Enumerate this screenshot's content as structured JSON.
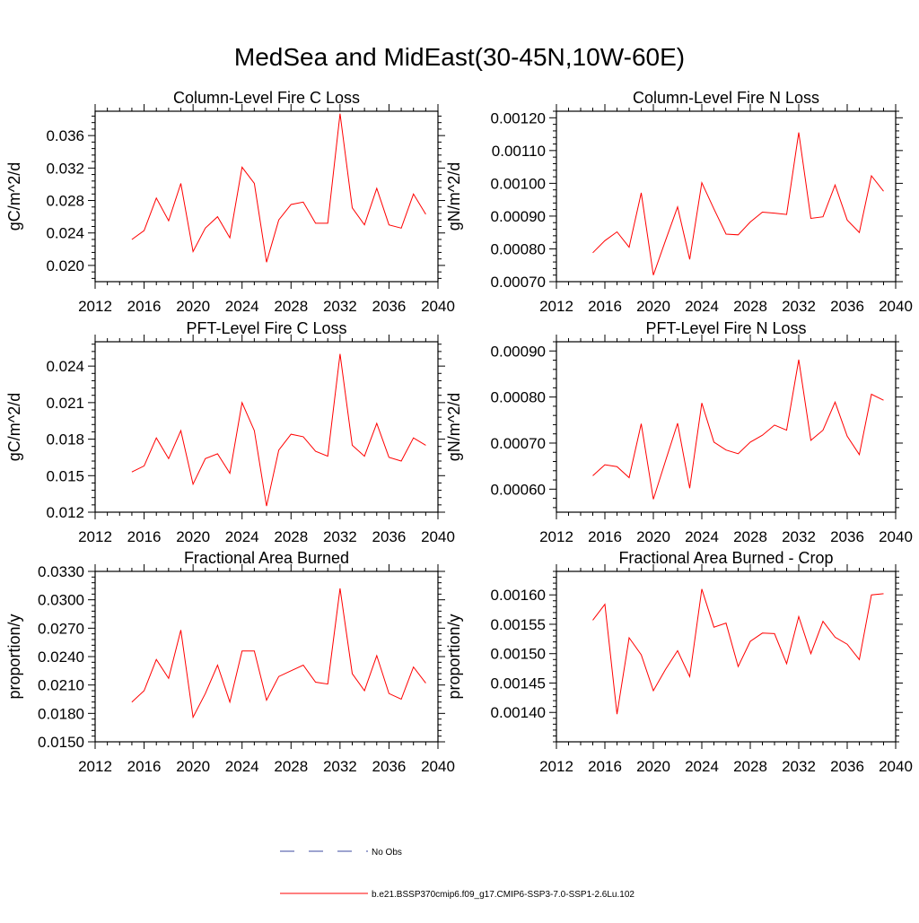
{
  "title": "MedSea and MidEast(30-45N,10W-60E)",
  "colors": {
    "series": "#ff0000",
    "obs": "#3b4aa0",
    "axis": "#000000"
  },
  "legend": {
    "obs_label": "No Obs",
    "model_label": "b.e21.BSSP370cmip6.f09_g17.CMIP6-SSP3-7.0-SSP1-2.6Lu.102"
  },
  "chart_data": [
    {
      "type": "line",
      "title": "Column-Level Fire C Loss",
      "ylabel": "gC/m^2/d",
      "xlim": [
        2012,
        2040
      ],
      "ylim": [
        0.018,
        0.039
      ],
      "xticks": [
        "2012",
        "2016",
        "2020",
        "2024",
        "2028",
        "2032",
        "2036",
        "2040"
      ],
      "yticks": [
        "0.020",
        "0.024",
        "0.028",
        "0.032",
        "0.036"
      ],
      "x": [
        2015,
        2016,
        2017,
        2018,
        2019,
        2020,
        2021,
        2022,
        2023,
        2024,
        2025,
        2026,
        2027,
        2028,
        2029,
        2030,
        2031,
        2032,
        2033,
        2034,
        2035,
        2036,
        2037,
        2038,
        2039
      ],
      "values": [
        0.0232,
        0.0243,
        0.0283,
        0.0255,
        0.0301,
        0.0217,
        0.0246,
        0.026,
        0.0234,
        0.0321,
        0.0301,
        0.0204,
        0.0256,
        0.0275,
        0.0278,
        0.0252,
        0.0252,
        0.0387,
        0.0271,
        0.025,
        0.0295,
        0.025,
        0.0246,
        0.0288,
        0.0263
      ]
    },
    {
      "type": "line",
      "title": "Column-Level Fire N Loss",
      "ylabel": "gN/m^2/d",
      "xlim": [
        2012,
        2040
      ],
      "ylim": [
        0.0007,
        0.00122
      ],
      "xticks": [
        "2012",
        "2016",
        "2020",
        "2024",
        "2028",
        "2032",
        "2036",
        "2040"
      ],
      "yticks": [
        "0.00070",
        "0.00080",
        "0.00090",
        "0.00100",
        "0.00110",
        "0.00120"
      ],
      "x": [
        2015,
        2016,
        2017,
        2018,
        2019,
        2020,
        2021,
        2022,
        2023,
        2024,
        2025,
        2026,
        2027,
        2028,
        2029,
        2030,
        2031,
        2032,
        2033,
        2034,
        2035,
        2036,
        2037,
        2038,
        2039
      ],
      "values": [
        0.000788,
        0.000825,
        0.000852,
        0.000805,
        0.000971,
        0.00072,
        0.000825,
        0.000928,
        0.000768,
        0.001002,
        0.000922,
        0.000845,
        0.000843,
        0.000882,
        0.000912,
        0.000909,
        0.000905,
        0.001155,
        0.000893,
        0.000898,
        0.000995,
        0.000888,
        0.00085,
        0.001023,
        0.000976
      ]
    },
    {
      "type": "line",
      "title": "PFT-Level Fire C Loss",
      "ylabel": "gC/m^2/d",
      "xlim": [
        2012,
        2040
      ],
      "ylim": [
        0.012,
        0.026
      ],
      "xticks": [
        "2012",
        "2016",
        "2020",
        "2024",
        "2028",
        "2032",
        "2036",
        "2040"
      ],
      "yticks": [
        "0.012",
        "0.015",
        "0.018",
        "0.021",
        "0.024"
      ],
      "x": [
        2015,
        2016,
        2017,
        2018,
        2019,
        2020,
        2021,
        2022,
        2023,
        2024,
        2025,
        2026,
        2027,
        2028,
        2029,
        2030,
        2031,
        2032,
        2033,
        2034,
        2035,
        2036,
        2037,
        2038,
        2039
      ],
      "values": [
        0.0153,
        0.0158,
        0.0181,
        0.0164,
        0.0187,
        0.0143,
        0.0164,
        0.0168,
        0.0152,
        0.021,
        0.0187,
        0.0125,
        0.0171,
        0.0184,
        0.0182,
        0.017,
        0.0166,
        0.025,
        0.0175,
        0.0166,
        0.0193,
        0.0165,
        0.0162,
        0.0181,
        0.0175
      ]
    },
    {
      "type": "line",
      "title": "PFT-Level Fire N Loss",
      "ylabel": "gN/m^2/d",
      "xlim": [
        2012,
        2040
      ],
      "ylim": [
        0.00055,
        0.00092
      ],
      "xticks": [
        "2012",
        "2016",
        "2020",
        "2024",
        "2028",
        "2032",
        "2036",
        "2040"
      ],
      "yticks": [
        "0.00060",
        "0.00070",
        "0.00080",
        "0.00090"
      ],
      "x": [
        2015,
        2016,
        2017,
        2018,
        2019,
        2020,
        2021,
        2022,
        2023,
        2024,
        2025,
        2026,
        2027,
        2028,
        2029,
        2030,
        2031,
        2032,
        2033,
        2034,
        2035,
        2036,
        2037,
        2038,
        2039
      ],
      "values": [
        0.000629,
        0.000653,
        0.000649,
        0.000625,
        0.000742,
        0.000578,
        0.000661,
        0.000743,
        0.000602,
        0.000787,
        0.000702,
        0.000685,
        0.000677,
        0.000702,
        0.000717,
        0.000739,
        0.000728,
        0.000881,
        0.000706,
        0.000728,
        0.000789,
        0.000715,
        0.000675,
        0.000806,
        0.000793
      ]
    },
    {
      "type": "line",
      "title": "Fractional Area Burned",
      "ylabel": "proportion/y",
      "xlim": [
        2012,
        2040
      ],
      "ylim": [
        0.015,
        0.033
      ],
      "xticks": [
        "2012",
        "2016",
        "2020",
        "2024",
        "2028",
        "2032",
        "2036",
        "2040"
      ],
      "yticks": [
        "0.0150",
        "0.0180",
        "0.0210",
        "0.0240",
        "0.0270",
        "0.0300",
        "0.0330"
      ],
      "x": [
        2015,
        2016,
        2017,
        2018,
        2019,
        2020,
        2021,
        2022,
        2023,
        2024,
        2025,
        2026,
        2027,
        2028,
        2029,
        2030,
        2031,
        2032,
        2033,
        2034,
        2035,
        2036,
        2037,
        2038,
        2039
      ],
      "values": [
        0.0192,
        0.0204,
        0.0237,
        0.0217,
        0.0268,
        0.0176,
        0.0201,
        0.0231,
        0.0192,
        0.0246,
        0.0246,
        0.0194,
        0.0219,
        0.0225,
        0.0231,
        0.0213,
        0.0211,
        0.0312,
        0.0222,
        0.0204,
        0.0241,
        0.0201,
        0.0195,
        0.0229,
        0.0212
      ]
    },
    {
      "type": "line",
      "title": "Fractional Area Burned - Crop",
      "ylabel": "proportion/y",
      "xlim": [
        2012,
        2040
      ],
      "ylim": [
        0.00135,
        0.00164
      ],
      "xticks": [
        "2012",
        "2016",
        "2020",
        "2024",
        "2028",
        "2032",
        "2036",
        "2040"
      ],
      "yticks": [
        "0.00140",
        "0.00145",
        "0.00150",
        "0.00155",
        "0.00160"
      ],
      "x": [
        2015,
        2016,
        2017,
        2018,
        2019,
        2020,
        2021,
        2022,
        2023,
        2024,
        2025,
        2026,
        2027,
        2028,
        2029,
        2030,
        2031,
        2032,
        2033,
        2034,
        2035,
        2036,
        2037,
        2038,
        2039
      ],
      "values": [
        0.001557,
        0.001584,
        0.001397,
        0.001527,
        0.001498,
        0.001437,
        0.001473,
        0.001505,
        0.001461,
        0.00161,
        0.001545,
        0.001552,
        0.001478,
        0.001521,
        0.001535,
        0.001534,
        0.001483,
        0.001563,
        0.0015,
        0.001555,
        0.001528,
        0.001516,
        0.00149,
        0.0016,
        0.001602
      ]
    }
  ]
}
